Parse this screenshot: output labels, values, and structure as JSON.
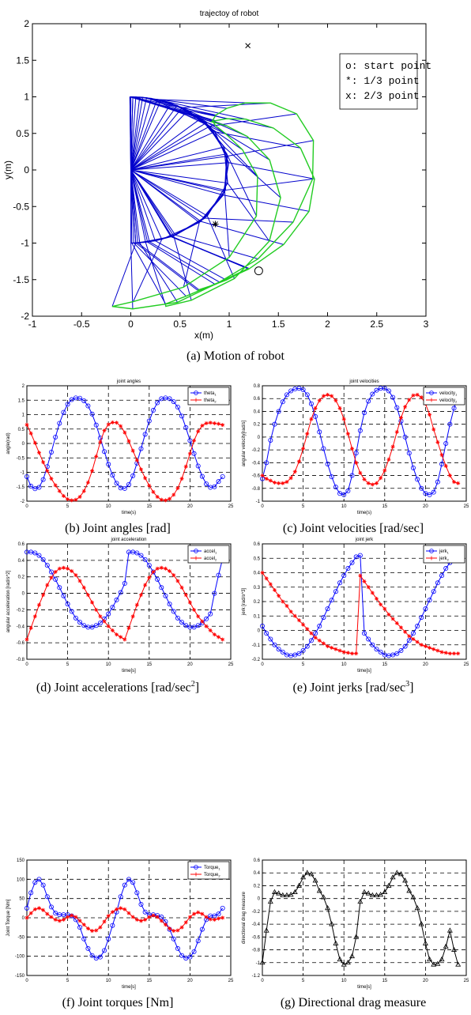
{
  "chart_data": [
    {
      "id": "a",
      "type": "line",
      "title": "trajectoy of robot",
      "xlabel": "x(m)",
      "ylabel": "y(m)",
      "xlim": [
        -1,
        3
      ],
      "ylim": [
        -2,
        2
      ],
      "xticks": [
        -1,
        -0.5,
        0,
        0.5,
        1,
        1.5,
        2,
        2.5,
        3
      ],
      "yticks": [
        -2,
        -1.5,
        -1,
        -0.5,
        0,
        0.5,
        1,
        1.5,
        2
      ],
      "link1": 1.0,
      "link2": 0.9,
      "angle_arrays": "theta1 = chart_data[1].series[0].values, theta2 = chart_data[1].series[1].values, t = chart_data[1].x",
      "markers": {
        "start": {
          "x": 1.3,
          "y": -1.38,
          "symbol": "o"
        },
        "third": {
          "x": 0.86,
          "y": -0.74,
          "symbol": "*"
        },
        "two_thirds": {
          "x": 1.19,
          "y": 1.7,
          "symbol": "x"
        }
      },
      "legend": [
        "o: start point",
        "*: 1/3 point",
        "x: 2/3 point"
      ],
      "caption": "(a) Motion of robot"
    },
    {
      "id": "b",
      "type": "line",
      "title": "joint angles",
      "xlabel": "time(s)",
      "ylabel": "angle(rad)",
      "xlim": [
        0,
        25
      ],
      "ylim": [
        -2,
        2
      ],
      "xticks": [
        0,
        5,
        10,
        15,
        20,
        25
      ],
      "yticks": [
        -2,
        -1.5,
        -1,
        -0.5,
        0,
        0.5,
        1,
        1.5,
        2
      ],
      "x": [
        0,
        0.5,
        1,
        1.5,
        2,
        2.5,
        3,
        3.5,
        4,
        4.5,
        5,
        5.5,
        6,
        6.5,
        7,
        7.5,
        8,
        8.5,
        9,
        9.5,
        10,
        10.5,
        11,
        11.5,
        12,
        12.5,
        13,
        13.5,
        14,
        14.5,
        15,
        15.5,
        16,
        16.5,
        17,
        17.5,
        18,
        18.5,
        19,
        19.5,
        20,
        20.5,
        21,
        21.5,
        22,
        22.5,
        23,
        23.5,
        24
      ],
      "series": [
        {
          "name": "theta",
          "sub": "1",
          "color": "#0000ff",
          "marker": "o",
          "values": [
            -1.15,
            -1.48,
            -1.57,
            -1.52,
            -1.25,
            -0.8,
            -0.3,
            0.22,
            0.7,
            1.08,
            1.36,
            1.52,
            1.58,
            1.57,
            1.48,
            1.3,
            1.02,
            0.64,
            0.19,
            -0.28,
            -0.72,
            -1.1,
            -1.38,
            -1.54,
            -1.56,
            -1.42,
            -1.12,
            -0.68,
            -0.18,
            0.32,
            0.78,
            1.15,
            1.41,
            1.55,
            1.58,
            1.55,
            1.45,
            1.26,
            0.95,
            0.55,
            0.1,
            -0.35,
            -0.78,
            -1.14,
            -1.4,
            -1.52,
            -1.5,
            -1.32,
            -1.15
          ]
        },
        {
          "name": "theta",
          "sub": "2",
          "color": "#ff0000",
          "marker": "*",
          "values": [
            0.65,
            0.35,
            0.02,
            -0.32,
            -0.65,
            -0.95,
            -1.22,
            -1.45,
            -1.65,
            -1.82,
            -1.93,
            -1.97,
            -1.95,
            -1.85,
            -1.65,
            -1.35,
            -0.95,
            -0.45,
            0.05,
            0.45,
            0.66,
            0.73,
            0.72,
            0.6,
            0.38,
            0.08,
            -0.25,
            -0.58,
            -0.9,
            -1.2,
            -1.46,
            -1.68,
            -1.85,
            -1.95,
            -1.97,
            -1.92,
            -1.78,
            -1.55,
            -1.22,
            -0.8,
            -0.35,
            0.1,
            0.42,
            0.62,
            0.7,
            0.72,
            0.7,
            0.68,
            0.64
          ]
        }
      ],
      "caption": "(b) Joint angles [rad]"
    },
    {
      "id": "c",
      "type": "line",
      "title": "joint velocities",
      "xlabel": "time(s)",
      "ylabel": "angular velocity[rad/s]",
      "xlim": [
        0,
        25
      ],
      "ylim": [
        -1,
        0.8
      ],
      "xticks": [
        0,
        5,
        10,
        15,
        20,
        25
      ],
      "yticks": [
        -1,
        -0.8,
        -0.6,
        -0.4,
        -0.2,
        0,
        0.2,
        0.4,
        0.6,
        0.8
      ],
      "x": [
        0,
        0.5,
        1,
        1.5,
        2,
        2.5,
        3,
        3.5,
        4,
        4.5,
        5,
        5.5,
        6,
        6.5,
        7,
        7.5,
        8,
        8.5,
        9,
        9.5,
        10,
        10.5,
        11,
        11.5,
        12,
        12.5,
        13,
        13.5,
        14,
        14.5,
        15,
        15.5,
        16,
        16.5,
        17,
        17.5,
        18,
        18.5,
        19,
        19.5,
        20,
        20.5,
        21,
        21.5,
        22,
        22.5,
        23,
        23.5,
        24
      ],
      "series": [
        {
          "name": "velocity",
          "sub": "1",
          "color": "#0000ff",
          "marker": "o",
          "values": [
            -0.65,
            -0.4,
            -0.05,
            0.2,
            0.4,
            0.55,
            0.66,
            0.72,
            0.75,
            0.76,
            0.74,
            0.66,
            0.52,
            0.32,
            0.08,
            -0.18,
            -0.42,
            -0.62,
            -0.78,
            -0.88,
            -0.9,
            -0.84,
            -0.6,
            -0.25,
            0.1,
            0.38,
            0.56,
            0.67,
            0.73,
            0.76,
            0.76,
            0.72,
            0.62,
            0.46,
            0.25,
            0.0,
            -0.25,
            -0.48,
            -0.66,
            -0.8,
            -0.88,
            -0.9,
            -0.86,
            -0.7,
            -0.42,
            -0.1,
            0.2,
            0.45,
            0.63
          ]
        },
        {
          "name": "velocity",
          "sub": "2",
          "color": "#ff0000",
          "marker": "*",
          "values": [
            -0.6,
            -0.65,
            -0.68,
            -0.71,
            -0.72,
            -0.72,
            -0.7,
            -0.64,
            -0.54,
            -0.38,
            -0.18,
            0.05,
            0.28,
            0.45,
            0.57,
            0.64,
            0.66,
            0.64,
            0.57,
            0.45,
            0.28,
            0.05,
            -0.18,
            -0.4,
            -0.56,
            -0.66,
            -0.72,
            -0.74,
            -0.72,
            -0.64,
            -0.52,
            -0.35,
            -0.15,
            0.08,
            0.3,
            0.47,
            0.58,
            0.65,
            0.66,
            0.62,
            0.52,
            0.35,
            0.12,
            -0.08,
            -0.28,
            -0.45,
            -0.6,
            -0.7,
            -0.72
          ]
        }
      ],
      "caption": "(c) Joint velocities [rad/sec]"
    },
    {
      "id": "d",
      "type": "line",
      "title": "joint acceleration",
      "xlabel": "time[s]",
      "ylabel": "angular acceleration [rad/s^2]",
      "xlim": [
        0,
        25
      ],
      "ylim": [
        -0.8,
        0.6
      ],
      "xticks": [
        0,
        5,
        10,
        15,
        20,
        25
      ],
      "yticks": [
        -0.8,
        -0.6,
        -0.4,
        -0.2,
        0,
        0.2,
        0.4,
        0.6
      ],
      "x": [
        0,
        0.5,
        1,
        1.5,
        2,
        2.5,
        3,
        3.5,
        4,
        4.5,
        5,
        5.5,
        6,
        6.5,
        7,
        7.5,
        8,
        8.5,
        9,
        9.5,
        10,
        10.5,
        11,
        11.5,
        12,
        12.5,
        13,
        13.5,
        14,
        14.5,
        15,
        15.5,
        16,
        16.5,
        17,
        17.5,
        18,
        18.5,
        19,
        19.5,
        20,
        20.5,
        21,
        21.5,
        22,
        22.5,
        23,
        23.5,
        24
      ],
      "series": [
        {
          "name": "accel",
          "sub": "1",
          "color": "#0000ff",
          "marker": "o",
          "values": [
            0.5,
            0.5,
            0.49,
            0.46,
            0.41,
            0.34,
            0.26,
            0.17,
            0.07,
            -0.03,
            -0.13,
            -0.22,
            -0.3,
            -0.35,
            -0.39,
            -0.41,
            -0.41,
            -0.39,
            -0.36,
            -0.31,
            -0.25,
            -0.17,
            -0.08,
            0.01,
            0.12,
            0.5,
            0.5,
            0.49,
            0.46,
            0.41,
            0.34,
            0.26,
            0.17,
            0.07,
            -0.03,
            -0.13,
            -0.22,
            -0.3,
            -0.35,
            -0.39,
            -0.41,
            -0.41,
            -0.39,
            -0.36,
            -0.31,
            -0.25,
            0.0,
            0.22,
            0.42
          ]
        },
        {
          "name": "accel",
          "sub": "2",
          "color": "#ff0000",
          "marker": "*",
          "values": [
            -0.56,
            -0.42,
            -0.28,
            -0.14,
            -0.02,
            0.1,
            0.19,
            0.26,
            0.3,
            0.31,
            0.3,
            0.27,
            0.22,
            0.15,
            0.07,
            -0.02,
            -0.11,
            -0.2,
            -0.28,
            -0.34,
            -0.4,
            -0.45,
            -0.5,
            -0.53,
            -0.56,
            -0.42,
            -0.28,
            -0.14,
            -0.02,
            0.1,
            0.19,
            0.26,
            0.3,
            0.31,
            0.3,
            0.27,
            0.22,
            0.15,
            0.07,
            -0.02,
            -0.11,
            -0.2,
            -0.28,
            -0.34,
            -0.4,
            -0.45,
            -0.5,
            -0.53,
            -0.56
          ]
        }
      ],
      "caption_main": "(d) Joint accelerations [rad/sec",
      "caption_sup": "2",
      "caption_end": "]"
    },
    {
      "id": "e",
      "type": "line",
      "title": "joint jerk",
      "xlabel": "time[s]",
      "ylabel": "jerk [rad/s^3]",
      "xlim": [
        0,
        25
      ],
      "ylim": [
        -0.2,
        0.6
      ],
      "xticks": [
        0,
        5,
        10,
        15,
        20,
        25
      ],
      "yticks": [
        -0.2,
        -0.1,
        0,
        0.1,
        0.2,
        0.3,
        0.4,
        0.5,
        0.6
      ],
      "x": [
        0,
        0.5,
        1,
        1.5,
        2,
        2.5,
        3,
        3.5,
        4,
        4.5,
        5,
        5.5,
        6,
        6.5,
        7,
        7.5,
        8,
        8.5,
        9,
        9.5,
        10,
        10.5,
        11,
        11.5,
        12,
        12.5,
        13,
        13.5,
        14,
        14.5,
        15,
        15.5,
        16,
        16.5,
        17,
        17.5,
        18,
        18.5,
        19,
        19.5,
        20,
        20.5,
        21,
        21.5,
        22,
        22.5,
        23,
        23.5,
        24
      ],
      "series": [
        {
          "name": "jerk",
          "sub": "1",
          "color": "#0000ff",
          "marker": "o",
          "values": [
            0.03,
            -0.02,
            -0.06,
            -0.1,
            -0.13,
            -0.15,
            -0.17,
            -0.175,
            -0.17,
            -0.16,
            -0.14,
            -0.11,
            -0.07,
            -0.02,
            0.03,
            0.09,
            0.15,
            0.21,
            0.27,
            0.33,
            0.38,
            0.43,
            0.47,
            0.51,
            0.52,
            -0.02,
            -0.06,
            -0.1,
            -0.13,
            -0.15,
            -0.17,
            -0.175,
            -0.17,
            -0.16,
            -0.14,
            -0.11,
            -0.07,
            -0.02,
            0.03,
            0.09,
            0.15,
            0.21,
            0.27,
            0.33,
            0.38,
            0.43,
            0.47,
            0.49,
            0.5
          ]
        },
        {
          "name": "jerk",
          "sub": "2",
          "color": "#ff0000",
          "marker": "*",
          "values": [
            0.4,
            0.36,
            0.32,
            0.28,
            0.24,
            0.2,
            0.17,
            0.13,
            0.1,
            0.07,
            0.04,
            0.01,
            -0.02,
            -0.05,
            -0.07,
            -0.09,
            -0.11,
            -0.12,
            -0.13,
            -0.14,
            -0.15,
            -0.155,
            -0.16,
            -0.16,
            0.38,
            0.34,
            0.3,
            0.26,
            0.22,
            0.18,
            0.15,
            0.11,
            0.08,
            0.05,
            0.02,
            -0.01,
            -0.04,
            -0.06,
            -0.08,
            -0.1,
            -0.11,
            -0.12,
            -0.13,
            -0.14,
            -0.15,
            -0.155,
            -0.16,
            -0.16,
            -0.16
          ]
        }
      ],
      "caption_main": "(e) Joint jerks [rad/sec",
      "caption_sup": "3",
      "caption_end": "]"
    },
    {
      "id": "f",
      "type": "line",
      "title": "",
      "xlabel": "time[s]",
      "ylabel": "Joint Torque [Nm]",
      "xlim": [
        0,
        25
      ],
      "ylim": [
        -150,
        150
      ],
      "xticks": [
        0,
        5,
        10,
        15,
        20,
        25
      ],
      "yticks": [
        -150,
        -100,
        -50,
        0,
        50,
        100,
        150
      ],
      "x": [
        0,
        0.5,
        1,
        1.5,
        2,
        2.5,
        3,
        3.5,
        4,
        4.5,
        5,
        5.5,
        6,
        6.5,
        7,
        7.5,
        8,
        8.5,
        9,
        9.5,
        10,
        10.5,
        11,
        11.5,
        12,
        12.5,
        13,
        13.5,
        14,
        14.5,
        15,
        15.5,
        16,
        16.5,
        17,
        17.5,
        18,
        18.5,
        19,
        19.5,
        20,
        20.5,
        21,
        21.5,
        22,
        22.5,
        23,
        23.5,
        24
      ],
      "series": [
        {
          "name": "Torque",
          "sub": "1",
          "color": "#0000ff",
          "marker": "o",
          "values": [
            25,
            65,
            92,
            100,
            85,
            55,
            28,
            12,
            8,
            8,
            8,
            5,
            -5,
            -25,
            -55,
            -80,
            -98,
            -105,
            -102,
            -85,
            -55,
            -20,
            15,
            55,
            85,
            100,
            92,
            65,
            35,
            15,
            8,
            8,
            6,
            2,
            -10,
            -30,
            -55,
            -80,
            -98,
            -105,
            -102,
            -88,
            -60,
            -30,
            -5,
            5,
            5,
            10,
            25
          ]
        },
        {
          "name": "Torque",
          "sub": "2",
          "color": "#ff0000",
          "marker": "*",
          "values": [
            0,
            12,
            22,
            25,
            20,
            10,
            2,
            -5,
            -8,
            -5,
            2,
            6,
            2,
            -8,
            -18,
            -28,
            -34,
            -33,
            -25,
            -10,
            5,
            15,
            22,
            25,
            22,
            12,
            2,
            -5,
            -8,
            -5,
            2,
            6,
            2,
            -8,
            -18,
            -28,
            -34,
            -33,
            -25,
            -12,
            2,
            10,
            14,
            10,
            2,
            -4,
            -5,
            -2,
            0
          ]
        }
      ],
      "caption": "(f) Joint torques [Nm]"
    },
    {
      "id": "g",
      "type": "line",
      "title": "",
      "xlabel": "time[s]",
      "ylabel": "directional drag measure",
      "xlim": [
        0,
        25
      ],
      "ylim": [
        -1.2,
        0.6
      ],
      "xticks": [
        0,
        5,
        10,
        15,
        20,
        25
      ],
      "yticks": [
        -1.2,
        -1,
        -0.8,
        -0.6,
        -0.4,
        -0.2,
        0,
        0.2,
        0.4,
        0.6
      ],
      "x": [
        0,
        0.5,
        1,
        1.5,
        2,
        2.5,
        3,
        3.5,
        4,
        4.5,
        5,
        5.5,
        6,
        6.5,
        7,
        7.5,
        8,
        8.5,
        9,
        9.5,
        10,
        10.5,
        11,
        11.5,
        12,
        12.5,
        13,
        13.5,
        14,
        14.5,
        15,
        15.5,
        16,
        16.5,
        17,
        17.5,
        18,
        18.5,
        19,
        19.5,
        20,
        20.5,
        21,
        21.5,
        22,
        22.5,
        23,
        23.5,
        24
      ],
      "series": [
        {
          "name": "drag",
          "color": "#000000",
          "marker": "triangle",
          "values": [
            -1.0,
            -0.5,
            -0.05,
            0.1,
            0.08,
            0.05,
            0.05,
            0.06,
            0.1,
            0.2,
            0.33,
            0.4,
            0.38,
            0.28,
            0.12,
            0.02,
            -0.15,
            -0.4,
            -0.7,
            -0.95,
            -1.03,
            -1.0,
            -0.9,
            -0.6,
            -0.05,
            0.1,
            0.08,
            0.05,
            0.05,
            0.06,
            0.1,
            0.2,
            0.33,
            0.4,
            0.38,
            0.28,
            0.12,
            0.02,
            -0.15,
            -0.4,
            -0.7,
            -0.95,
            -1.03,
            -1.02,
            -0.95,
            -0.75,
            -0.5,
            -0.8,
            -1.03
          ]
        }
      ],
      "caption": "(g) Directional drag measure"
    }
  ]
}
